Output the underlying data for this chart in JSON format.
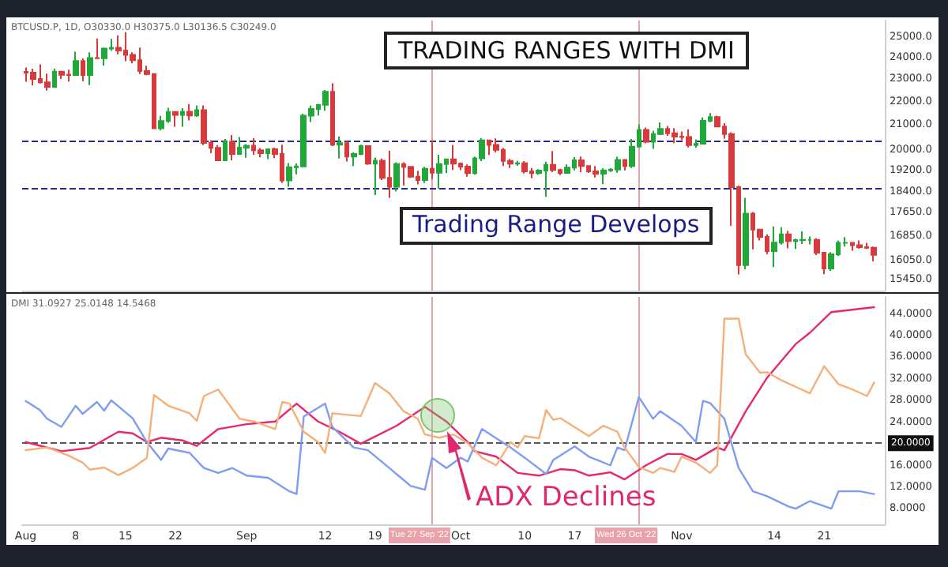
{
  "chart_data": [
    {
      "type": "candlestick",
      "title": "TRADING RANGES WITH DMI",
      "x": [
        "2022-08-01",
        "2022-08-02",
        "2022-08-03",
        "2022-08-04",
        "2022-08-05",
        "2022-08-06",
        "2022-08-07",
        "2022-08-08",
        "2022-08-09",
        "2022-08-10",
        "2022-08-11",
        "2022-08-12",
        "2022-08-13",
        "2022-08-14",
        "2022-08-15",
        "2022-08-16",
        "2022-08-17",
        "2022-08-18",
        "2022-08-19",
        "2022-08-20",
        "2022-08-21",
        "2022-08-22",
        "2022-08-23",
        "2022-08-24",
        "2022-08-25",
        "2022-08-26",
        "2022-08-27",
        "2022-08-28",
        "2022-08-29",
        "2022-08-30",
        "2022-08-31",
        "2022-09-01",
        "2022-09-02",
        "2022-09-03",
        "2022-09-04",
        "2022-09-05",
        "2022-09-06",
        "2022-09-07",
        "2022-09-08",
        "2022-09-09",
        "2022-09-10",
        "2022-09-11",
        "2022-09-12",
        "2022-09-13",
        "2022-09-14",
        "2022-09-15",
        "2022-09-16",
        "2022-09-17",
        "2022-09-18",
        "2022-09-19",
        "2022-09-20",
        "2022-09-21",
        "2022-09-22",
        "2022-09-23",
        "2022-09-24",
        "2022-09-25",
        "2022-09-26",
        "2022-09-27",
        "2022-09-28",
        "2022-09-29",
        "2022-09-30",
        "2022-10-01",
        "2022-10-02",
        "2022-10-03",
        "2022-10-04",
        "2022-10-05",
        "2022-10-06",
        "2022-10-07",
        "2022-10-08",
        "2022-10-09",
        "2022-10-10",
        "2022-10-11",
        "2022-10-12",
        "2022-10-13",
        "2022-10-14",
        "2022-10-15",
        "2022-10-16",
        "2022-10-17",
        "2022-10-18",
        "2022-10-19",
        "2022-10-20",
        "2022-10-21",
        "2022-10-22",
        "2022-10-23",
        "2022-10-24",
        "2022-10-25",
        "2022-10-26",
        "2022-10-27",
        "2022-10-28",
        "2022-10-29",
        "2022-10-30",
        "2022-10-31",
        "2022-11-01",
        "2022-11-02",
        "2022-11-03",
        "2022-11-04",
        "2022-11-05",
        "2022-11-06",
        "2022-11-07",
        "2022-11-08",
        "2022-11-09",
        "2022-11-10",
        "2022-11-11",
        "2022-11-12",
        "2022-11-13",
        "2022-11-14",
        "2022-11-15",
        "2022-11-16",
        "2022-11-17",
        "2022-11-18",
        "2022-11-19",
        "2022-11-20",
        "2022-11-21",
        "2022-11-22",
        "2022-11-23",
        "2022-11-24",
        "2022-11-25",
        "2022-11-26",
        "2022-11-27",
        "2022-11-28"
      ],
      "ohlc": [
        [
          23300,
          23500,
          22850,
          23270
        ],
        [
          23270,
          23450,
          22680,
          22980
        ],
        [
          22980,
          23650,
          22770,
          22820
        ],
        [
          22820,
          23220,
          22450,
          22620
        ],
        [
          22620,
          23450,
          22590,
          23310
        ],
        [
          23310,
          23340,
          22980,
          23170
        ],
        [
          23170,
          23400,
          22860,
          23160
        ],
        [
          23160,
          24250,
          23150,
          23810
        ],
        [
          23810,
          23930,
          22880,
          23160
        ],
        [
          23160,
          24220,
          22700,
          23950
        ],
        [
          23950,
          24900,
          23900,
          23940
        ],
        [
          23940,
          24450,
          23600,
          24400
        ],
        [
          24400,
          24880,
          24300,
          24440
        ],
        [
          24440,
          25050,
          24130,
          24310
        ],
        [
          24310,
          25210,
          23800,
          24100
        ],
        [
          24100,
          24220,
          23700,
          23850
        ],
        [
          23850,
          24450,
          23200,
          23340
        ],
        [
          23340,
          23590,
          23150,
          23200
        ],
        [
          23200,
          23200,
          20810,
          20830
        ],
        [
          20830,
          21350,
          20750,
          21140
        ],
        [
          21140,
          21700,
          21060,
          21520
        ],
        [
          21520,
          21520,
          20900,
          21400
        ],
        [
          21400,
          21680,
          20900,
          21530
        ],
        [
          21530,
          21860,
          21160,
          21370
        ],
        [
          21370,
          21800,
          21310,
          21600
        ],
        [
          21600,
          21800,
          20150,
          20240
        ],
        [
          20240,
          20340,
          19830,
          20040
        ],
        [
          20040,
          20150,
          19550,
          19550
        ],
        [
          19550,
          20400,
          19550,
          20290
        ],
        [
          20290,
          20560,
          19550,
          19800
        ],
        [
          19800,
          20480,
          19800,
          20050
        ],
        [
          20050,
          20190,
          19650,
          20130
        ],
        [
          20130,
          20440,
          19770,
          19950
        ],
        [
          19950,
          20030,
          19670,
          19830
        ],
        [
          19830,
          20000,
          19600,
          19990
        ],
        [
          19990,
          20050,
          19640,
          19800
        ],
        [
          19800,
          20170,
          18700,
          18790
        ],
        [
          18790,
          19450,
          18550,
          19290
        ],
        [
          19290,
          19430,
          19020,
          19320
        ],
        [
          19320,
          21450,
          19300,
          21360
        ],
        [
          21360,
          21790,
          21100,
          21650
        ],
        [
          21650,
          21860,
          21370,
          21830
        ],
        [
          21830,
          22480,
          21570,
          22400
        ],
        [
          22400,
          22780,
          20110,
          20170
        ],
        [
          20170,
          20500,
          19620,
          20230
        ],
        [
          20230,
          20320,
          19510,
          19700
        ],
        [
          19700,
          19860,
          19330,
          19800
        ],
        [
          19800,
          20170,
          19750,
          20110
        ],
        [
          20110,
          20120,
          19380,
          19420
        ],
        [
          19420,
          19660,
          18250,
          19540
        ],
        [
          19540,
          19620,
          18800,
          18880
        ],
        [
          18880,
          19930,
          18150,
          18550
        ],
        [
          18550,
          19480,
          18380,
          19410
        ],
        [
          19410,
          19480,
          18600,
          19300
        ],
        [
          19300,
          19300,
          18880,
          18930
        ],
        [
          18930,
          19150,
          18640,
          18800
        ],
        [
          18800,
          19300,
          18690,
          19230
        ],
        [
          19230,
          20340,
          18850,
          19080
        ],
        [
          19080,
          19770,
          18490,
          19410
        ],
        [
          19410,
          19620,
          19060,
          19590
        ],
        [
          19590,
          20160,
          19180,
          19420
        ],
        [
          19420,
          19470,
          19180,
          19310
        ],
        [
          19310,
          19390,
          18930,
          19060
        ],
        [
          19060,
          19700,
          19000,
          19630
        ],
        [
          19630,
          20440,
          19520,
          20340
        ],
        [
          20340,
          20360,
          19760,
          20160
        ],
        [
          20160,
          20420,
          19860,
          19960
        ],
        [
          19960,
          20040,
          19330,
          19530
        ],
        [
          19530,
          19610,
          19260,
          19420
        ],
        [
          19420,
          19530,
          19340,
          19440
        ],
        [
          19440,
          19520,
          19050,
          19130
        ],
        [
          19130,
          19260,
          18870,
          19060
        ],
        [
          19060,
          19210,
          19000,
          19160
        ],
        [
          19160,
          19500,
          18190,
          19380
        ],
        [
          19380,
          19920,
          19100,
          19180
        ],
        [
          19180,
          19230,
          18990,
          19070
        ],
        [
          19070,
          19390,
          19060,
          19270
        ],
        [
          19270,
          19680,
          19170,
          19550
        ],
        [
          19550,
          19700,
          19100,
          19330
        ],
        [
          19330,
          19350,
          19070,
          19130
        ],
        [
          19130,
          19330,
          18900,
          19040
        ],
        [
          19040,
          19250,
          18650,
          19170
        ],
        [
          19170,
          19250,
          19110,
          19200
        ],
        [
          19200,
          19690,
          19080,
          19570
        ],
        [
          19570,
          19600,
          19170,
          19330
        ],
        [
          19330,
          20400,
          19260,
          20090
        ],
        [
          20090,
          21000,
          20060,
          20770
        ],
        [
          20770,
          20870,
          20220,
          20290
        ],
        [
          20290,
          20740,
          20000,
          20600
        ],
        [
          20600,
          21080,
          20560,
          20810
        ],
        [
          20810,
          20930,
          20530,
          20630
        ],
        [
          20630,
          20840,
          20230,
          20490
        ],
        [
          20490,
          20700,
          20350,
          20480
        ],
        [
          20480,
          20790,
          20060,
          20150
        ],
        [
          20150,
          20380,
          20050,
          20210
        ],
        [
          20210,
          21290,
          20180,
          21150
        ],
        [
          21150,
          21470,
          21090,
          21300
        ],
        [
          21300,
          21360,
          20900,
          20910
        ],
        [
          20910,
          21050,
          20410,
          20600
        ],
        [
          20600,
          20670,
          17170,
          18540
        ],
        [
          18540,
          18590,
          15590,
          15880
        ],
        [
          15880,
          18150,
          15750,
          17590
        ],
        [
          17590,
          17650,
          16390,
          17040
        ],
        [
          17040,
          17070,
          16680,
          16800
        ],
        [
          16800,
          16880,
          16230,
          16330
        ],
        [
          16330,
          17150,
          15820,
          16610
        ],
        [
          16610,
          17120,
          16540,
          16880
        ],
        [
          16880,
          17000,
          16420,
          16660
        ],
        [
          16660,
          16740,
          16400,
          16690
        ],
        [
          16690,
          16980,
          16560,
          16700
        ],
        [
          16700,
          16810,
          16550,
          16700
        ],
        [
          16700,
          16750,
          16200,
          16280
        ],
        [
          16280,
          16290,
          15600,
          15780
        ],
        [
          15780,
          16300,
          15700,
          16230
        ],
        [
          16230,
          16670,
          16170,
          16600
        ],
        [
          16600,
          16790,
          16480,
          16600
        ],
        [
          16600,
          16600,
          16340,
          16520
        ],
        [
          16520,
          16680,
          16410,
          16460
        ],
        [
          16460,
          16600,
          16400,
          16440
        ],
        [
          16440,
          16480,
          16000,
          16210
        ]
      ],
      "xlim": [
        "2022-07-31T12:00",
        "2022-11-29T12:00"
      ],
      "ylim": [
        15100,
        25800
      ],
      "yticks": [
        {
          "value": 25000,
          "label": "25000.0"
        },
        {
          "value": 24000,
          "label": "24000.0"
        },
        {
          "value": 23000,
          "label": "23000.0"
        },
        {
          "value": 22000,
          "label": "22000.0"
        },
        {
          "value": 21000,
          "label": "21000.0"
        },
        {
          "value": 20000,
          "label": "20000.0"
        },
        {
          "value": 19200,
          "label": "19200.0"
        },
        {
          "value": 18400,
          "label": "18400.0"
        },
        {
          "value": 17650,
          "label": "17650.0"
        },
        {
          "value": 16850,
          "label": "16850.0"
        },
        {
          "value": 16050,
          "label": "16050.0"
        },
        {
          "value": 15450,
          "label": "15450.0"
        }
      ],
      "log": true,
      "tick_labels": "y",
      "ref_lines": [
        {
          "axis": "x",
          "value": "2022-09-27",
          "color": "#e8a3aa"
        },
        {
          "axis": "x",
          "value": "2022-10-26",
          "color": "#e8a3aa"
        },
        {
          "axis": "y",
          "value": 20300,
          "color": "#2b2b8c",
          "line_style": "dashed"
        },
        {
          "axis": "y",
          "value": 18500,
          "color": "#2b2b8c",
          "line_style": "dashed"
        }
      ],
      "annotations": [
        "BTCUSD.P, 1D, O30330.0 H30375.0 L30136.5 C30249.0",
        "Trading Range Develops"
      ]
    },
    {
      "type": "line",
      "series": [
        {
          "color": "#e8286e",
          "x": [
            "2022-08-01",
            "2022-08-06",
            "2022-08-10",
            "2022-08-14",
            "2022-08-16",
            "2022-08-18",
            "2022-08-20",
            "2022-08-23",
            "2022-08-25",
            "2022-08-28",
            "2022-09-01",
            "2022-09-05",
            "2022-09-08",
            "2022-09-11",
            "2022-09-14",
            "2022-09-17",
            "2022-09-22",
            "2022-09-26",
            "2022-09-29",
            "2022-10-02",
            "2022-10-03",
            "2022-10-06",
            "2022-10-09",
            "2022-10-12",
            "2022-10-15",
            "2022-10-17",
            "2022-10-19",
            "2022-10-22",
            "2022-10-24",
            "2022-10-27",
            "2022-10-30",
            "2022-11-01",
            "2022-11-03",
            "2022-11-06",
            "2022-11-07",
            "2022-11-10",
            "2022-11-13",
            "2022-11-17",
            "2022-11-19",
            "2022-11-22",
            "2022-11-28"
          ],
          "values": [
            20.2,
            18.5,
            19.1,
            22.1,
            21.8,
            20.2,
            21.0,
            20.5,
            19.5,
            22.6,
            23.5,
            24.0,
            27.3,
            24.0,
            22.1,
            19.9,
            23.2,
            26.7,
            24.0,
            20.2,
            18.5,
            17.5,
            14.5,
            14.0,
            15.2,
            15.0,
            14.0,
            14.6,
            13.3,
            15.9,
            18.0,
            18.0,
            16.9,
            19.2,
            18.7,
            25.9,
            32.1,
            38.3,
            40.4,
            44.2,
            45.1
          ]
        },
        {
          "color": "#7f9cf5",
          "x": [
            "2022-08-01",
            "2022-08-03",
            "2022-08-04",
            "2022-08-06",
            "2022-08-08",
            "2022-08-09",
            "2022-08-11",
            "2022-08-12",
            "2022-08-13",
            "2022-08-16",
            "2022-08-18",
            "2022-08-20",
            "2022-08-21",
            "2022-08-24",
            "2022-08-26",
            "2022-08-28",
            "2022-08-30",
            "2022-09-01",
            "2022-09-04",
            "2022-09-07",
            "2022-09-08",
            "2022-09-09",
            "2022-09-12",
            "2022-09-13",
            "2022-09-16",
            "2022-09-18",
            "2022-09-21",
            "2022-09-24",
            "2022-09-26",
            "2022-09-27",
            "2022-09-29",
            "2022-10-01",
            "2022-10-02",
            "2022-10-04",
            "2022-10-06",
            "2022-10-08",
            "2022-10-10",
            "2022-10-13",
            "2022-10-14",
            "2022-10-17",
            "2022-10-19",
            "2022-10-22",
            "2022-10-23",
            "2022-10-24",
            "2022-10-26",
            "2022-10-28",
            "2022-10-29",
            "2022-11-01",
            "2022-11-03",
            "2022-11-04",
            "2022-11-05",
            "2022-11-07",
            "2022-11-09",
            "2022-11-11",
            "2022-11-13",
            "2022-11-16",
            "2022-11-17",
            "2022-11-19",
            "2022-11-22",
            "2022-11-23",
            "2022-11-26",
            "2022-11-28"
          ],
          "values": [
            27.8,
            26.1,
            24.5,
            23.0,
            26.9,
            25.4,
            27.6,
            26.0,
            27.9,
            24.6,
            20.2,
            16.9,
            19.0,
            18.2,
            15.4,
            14.5,
            15.4,
            14.0,
            13.6,
            11.1,
            10.6,
            24.9,
            27.3,
            23.0,
            19.2,
            18.7,
            15.4,
            12.1,
            11.4,
            17.3,
            15.4,
            17.3,
            16.6,
            22.6,
            20.9,
            19.2,
            17.3,
            14.3,
            16.9,
            19.4,
            17.5,
            15.9,
            19.2,
            18.7,
            28.5,
            24.5,
            25.9,
            23.2,
            20.2,
            27.8,
            27.4,
            24.5,
            15.4,
            11.1,
            10.2,
            8.3,
            7.9,
            9.3,
            7.9,
            11.1,
            11.1,
            10.6
          ]
        },
        {
          "color": "#f5b07a",
          "x": [
            "2022-08-01",
            "2022-08-04",
            "2022-08-06",
            "2022-08-07",
            "2022-08-09",
            "2022-08-10",
            "2022-08-12",
            "2022-08-14",
            "2022-08-16",
            "2022-08-18",
            "2022-08-19",
            "2022-08-21",
            "2022-08-24",
            "2022-08-25",
            "2022-08-26",
            "2022-08-28",
            "2022-08-31",
            "2022-09-02",
            "2022-09-05",
            "2022-09-06",
            "2022-09-07",
            "2022-09-09",
            "2022-09-11",
            "2022-09-12",
            "2022-09-13",
            "2022-09-17",
            "2022-09-19",
            "2022-09-21",
            "2022-09-23",
            "2022-09-25",
            "2022-09-26",
            "2022-09-28",
            "2022-09-30",
            "2022-10-02",
            "2022-10-04",
            "2022-10-06",
            "2022-10-08",
            "2022-10-09",
            "2022-10-10",
            "2022-10-12",
            "2022-10-13",
            "2022-10-14",
            "2022-10-15",
            "2022-10-19",
            "2022-10-21",
            "2022-10-23",
            "2022-10-24",
            "2022-10-26",
            "2022-10-28",
            "2022-10-29",
            "2022-10-31",
            "2022-11-01",
            "2022-11-03",
            "2022-11-05",
            "2022-11-06",
            "2022-11-07",
            "2022-11-09",
            "2022-11-10",
            "2022-11-12",
            "2022-11-13",
            "2022-11-15",
            "2022-11-19",
            "2022-11-21",
            "2022-11-23",
            "2022-11-25",
            "2022-11-27",
            "2022-11-28"
          ],
          "values": [
            18.7,
            19.2,
            18.2,
            17.7,
            16.4,
            15.1,
            15.5,
            14.1,
            15.4,
            17.3,
            28.9,
            26.9,
            25.5,
            24.1,
            28.7,
            29.9,
            24.5,
            24.0,
            22.6,
            27.6,
            27.3,
            22.1,
            20.2,
            18.2,
            25.5,
            25.0,
            31.1,
            29.2,
            25.9,
            24.5,
            21.6,
            21.0,
            21.6,
            20.0,
            17.3,
            15.9,
            20.2,
            19.2,
            21.3,
            20.9,
            26.1,
            24.3,
            24.6,
            21.3,
            23.2,
            22.1,
            19.2,
            15.6,
            14.5,
            15.4,
            14.7,
            17.5,
            16.4,
            14.5,
            15.9,
            43.0,
            43.0,
            36.4,
            33.0,
            33.1,
            31.6,
            29.2,
            34.2,
            30.9,
            29.9,
            28.7,
            31.2
          ]
        }
      ],
      "xlim": [
        "2022-07-31T12:00",
        "2022-11-29T12:00"
      ],
      "xticks": [
        {
          "value": "2022-08-01",
          "label": "Aug"
        },
        {
          "value": "2022-08-08",
          "label": "8"
        },
        {
          "value": "2022-08-15",
          "label": "15"
        },
        {
          "value": "2022-08-22",
          "label": "22"
        },
        {
          "value": "2022-09-01",
          "label": "Sep"
        },
        {
          "value": "2022-09-12",
          "label": "12"
        },
        {
          "value": "2022-09-19",
          "label": "19"
        },
        {
          "value": "2022-10-01",
          "label": "Oct"
        },
        {
          "value": "2022-10-10",
          "label": "10"
        },
        {
          "value": "2022-10-17",
          "label": "17"
        },
        {
          "value": "2022-11-01",
          "label": "Nov"
        },
        {
          "value": "2022-11-14",
          "label": "14"
        },
        {
          "value": "2022-11-21",
          "label": "21"
        }
      ],
      "ylim": [
        5,
        47
      ],
      "yticks": [
        {
          "value": 8,
          "label": "8.0000"
        },
        {
          "value": 12,
          "label": "12.0000"
        },
        {
          "value": 16,
          "label": "16.0000"
        },
        {
          "value": 24,
          "label": "24.0000"
        },
        {
          "value": 28,
          "label": "28.0000"
        },
        {
          "value": 32,
          "label": "32.0000"
        },
        {
          "value": 36,
          "label": "36.0000"
        },
        {
          "value": 40,
          "label": "40.0000"
        },
        {
          "value": 44,
          "label": "44.0000"
        }
      ],
      "ref_lines": [
        {
          "axis": "x",
          "value": "2022-09-27",
          "label": "Tue 27 Sep '22",
          "color": "#e8a3aa"
        },
        {
          "axis": "x",
          "value": "2022-10-26",
          "label": "Wed 26 Oct '22",
          "color": "#e8a3aa"
        },
        {
          "axis": "y",
          "value": 20,
          "label": "20.0000",
          "color": "#555555",
          "line_style": "dashed"
        }
      ],
      "annotations": [
        "DMI 31.0927 25.0148 14.5468",
        "ADX Declines"
      ]
    }
  ]
}
